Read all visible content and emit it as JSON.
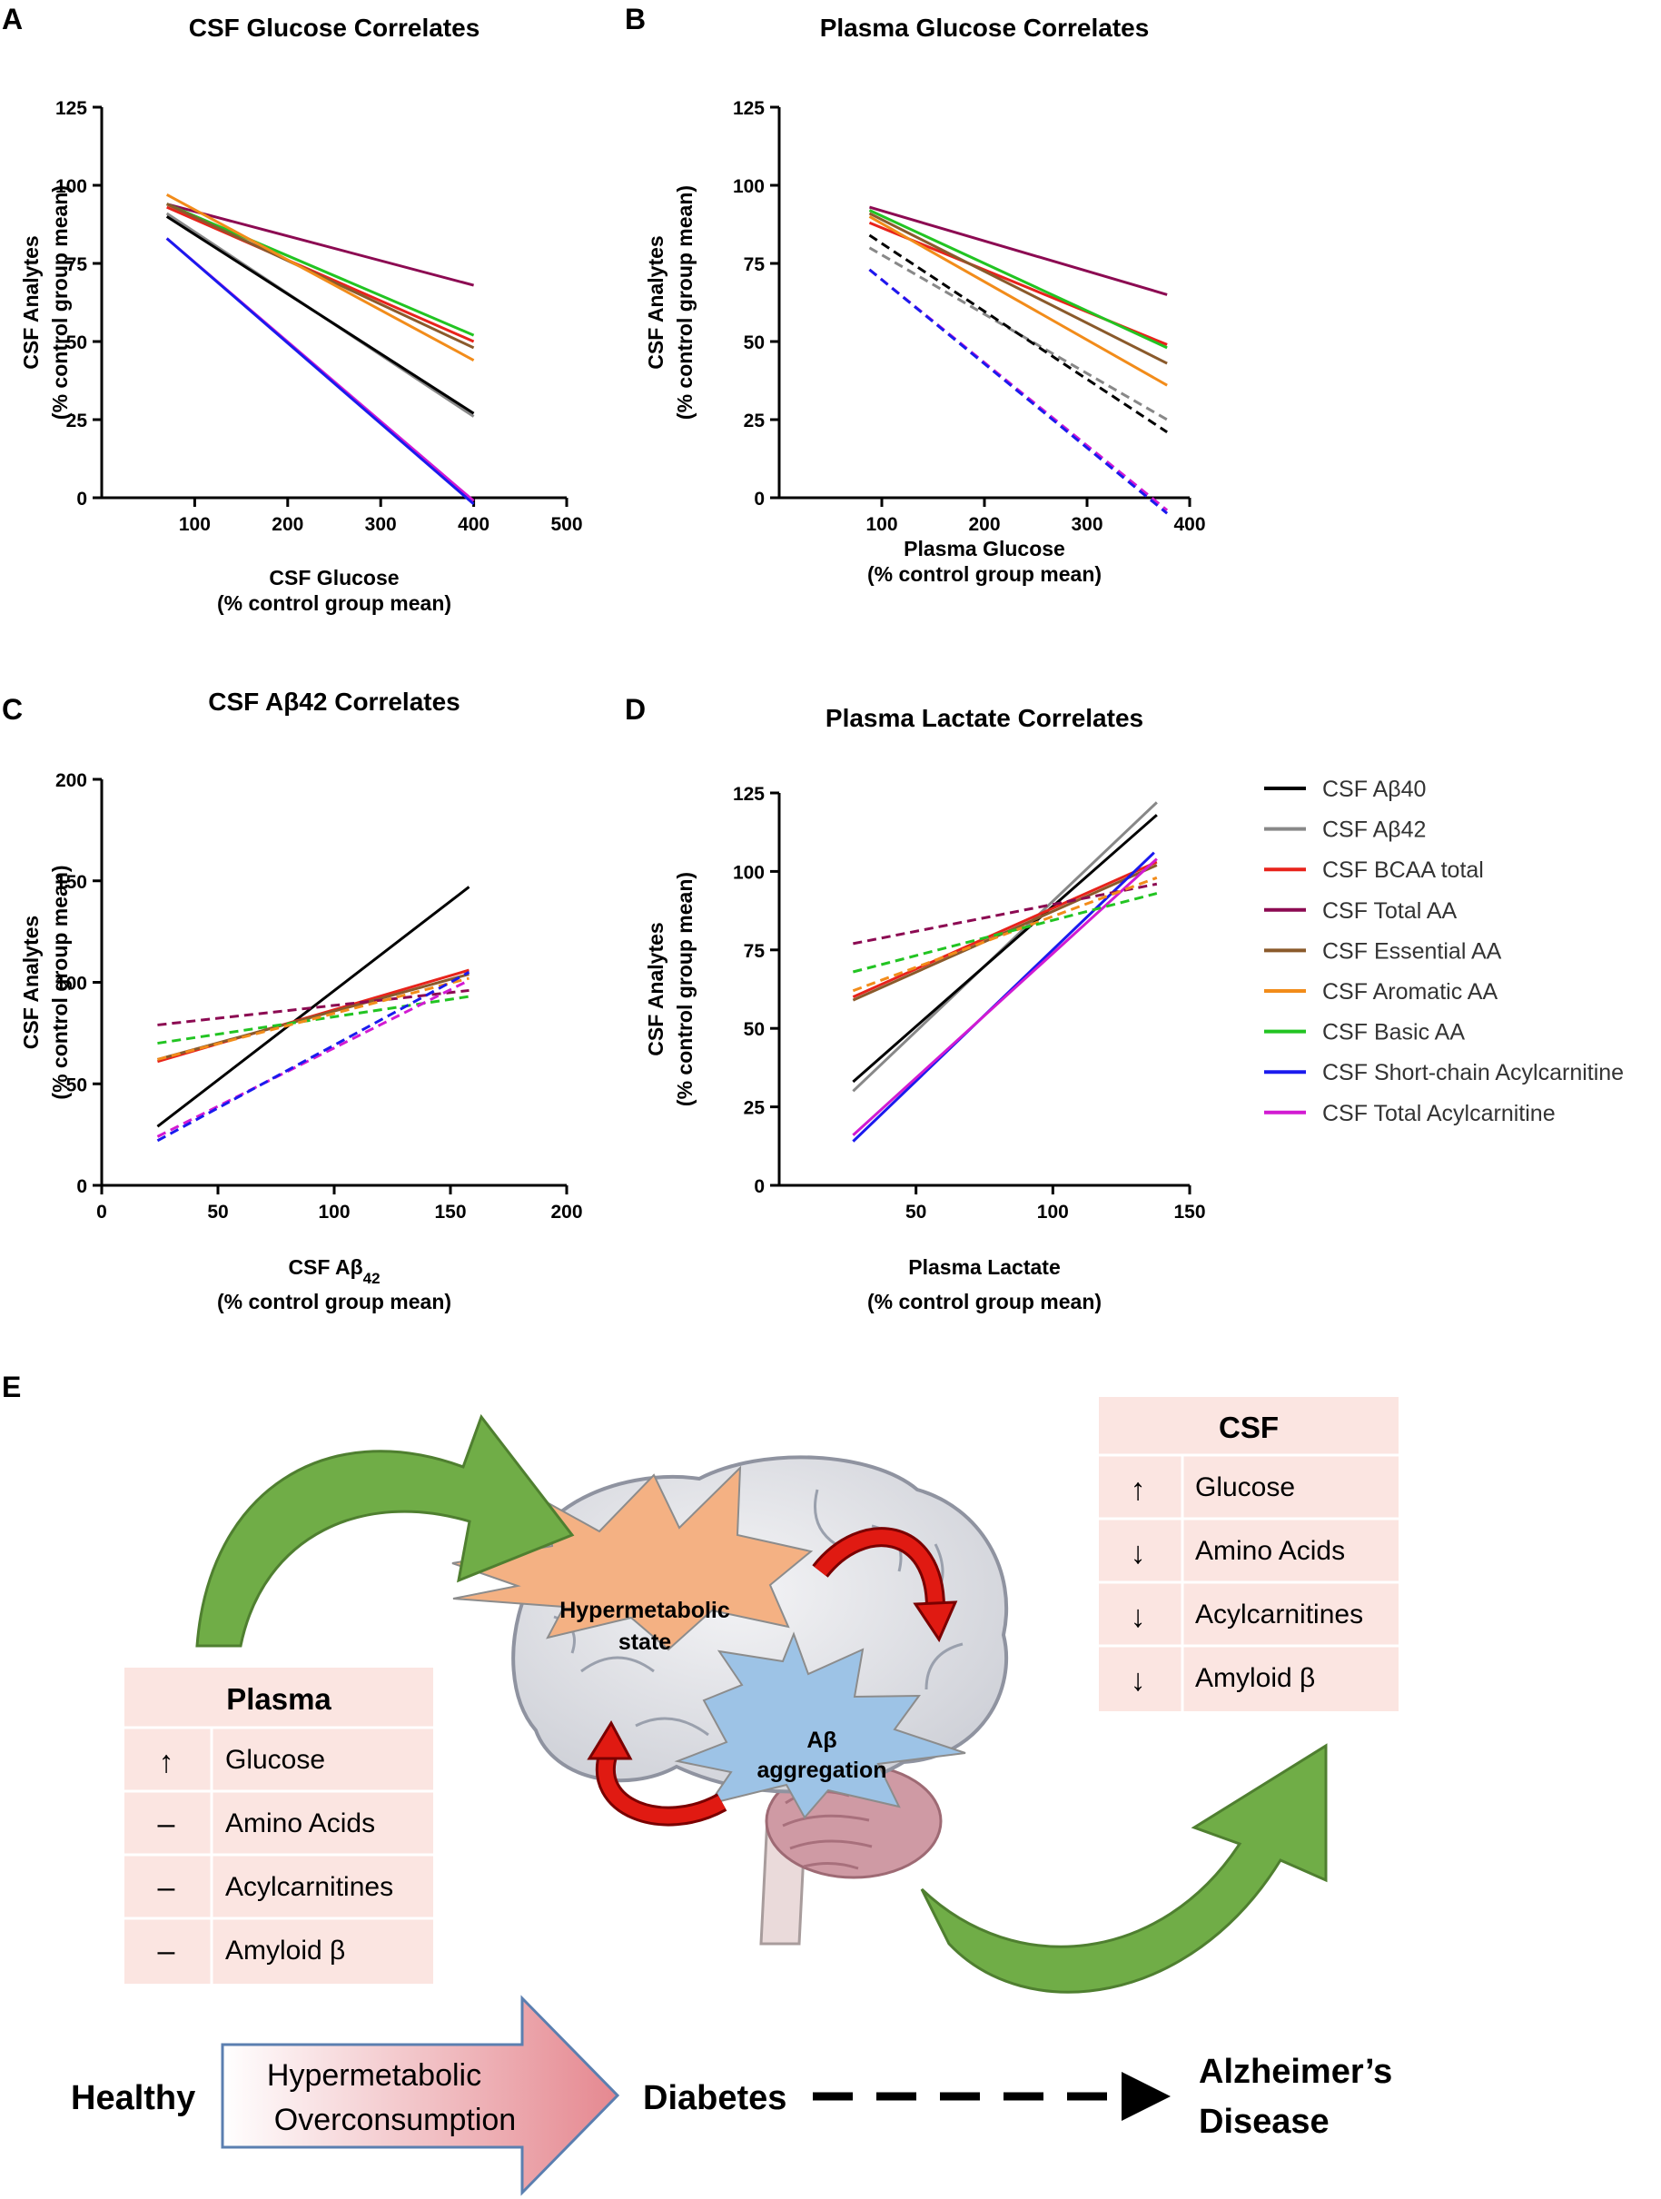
{
  "panel_letters": [
    "A",
    "B",
    "C",
    "D",
    "E"
  ],
  "colors": {
    "ab40": "#000000",
    "ab42": "#888888",
    "bcaa": "#e8231b",
    "total_aa": "#8c0a52",
    "essential_aa": "#8a5a2b",
    "aromatic_aa": "#f28c1a",
    "basic_aa": "#22c422",
    "short_acyl": "#1a1aee",
    "total_acyl": "#d21ad2"
  },
  "legend": [
    {
      "key": "ab40",
      "label": "CSF Aβ40"
    },
    {
      "key": "ab42",
      "label": "CSF Aβ42"
    },
    {
      "key": "bcaa",
      "label": "CSF BCAA total"
    },
    {
      "key": "total_aa",
      "label": "CSF Total AA"
    },
    {
      "key": "essential_aa",
      "label": "CSF Essential AA"
    },
    {
      "key": "aromatic_aa",
      "label": "CSF Aromatic AA"
    },
    {
      "key": "basic_aa",
      "label": "CSF Basic AA"
    },
    {
      "key": "short_acyl",
      "label": "CSF Short-chain Acylcarnitine"
    },
    {
      "key": "total_acyl",
      "label": "CSF Total Acylcarnitine"
    }
  ],
  "chart_data": [
    {
      "id": "A",
      "type": "line",
      "title": "CSF Glucose  Correlates",
      "xlabel": "CSF Glucose",
      "xlabel2": "(% control group mean)",
      "ylabel": "CSF Analytes",
      "ylabel2": "(% control group mean)",
      "xlim": [
        0,
        500
      ],
      "ylim": [
        0,
        125
      ],
      "xticks": [
        100,
        200,
        300,
        400,
        500
      ],
      "yticks": [
        0,
        25,
        50,
        75,
        100,
        125
      ],
      "series": [
        {
          "key": "total_aa",
          "x": [
            70,
            400
          ],
          "y": [
            94,
            68
          ],
          "dashed": false
        },
        {
          "key": "basic_aa",
          "x": [
            70,
            400
          ],
          "y": [
            94,
            52
          ],
          "dashed": false
        },
        {
          "key": "bcaa",
          "x": [
            70,
            400
          ],
          "y": [
            93,
            50
          ],
          "dashed": false
        },
        {
          "key": "essential_aa",
          "x": [
            70,
            400
          ],
          "y": [
            94,
            48
          ],
          "dashed": false
        },
        {
          "key": "aromatic_aa",
          "x": [
            70,
            400
          ],
          "y": [
            97,
            44
          ],
          "dashed": false
        },
        {
          "key": "ab42",
          "x": [
            70,
            400
          ],
          "y": [
            91,
            26
          ],
          "dashed": false
        },
        {
          "key": "ab40",
          "x": [
            70,
            400
          ],
          "y": [
            90,
            27
          ],
          "dashed": false
        },
        {
          "key": "total_acyl",
          "x": [
            70,
            400
          ],
          "y": [
            83,
            -1
          ],
          "dashed": false
        },
        {
          "key": "short_acyl",
          "x": [
            70,
            400
          ],
          "y": [
            83,
            -2
          ],
          "dashed": false
        }
      ]
    },
    {
      "id": "B",
      "type": "line",
      "title": "Plasma Glucose Correlates",
      "xlabel": "Plasma Glucose",
      "xlabel2": "(% control group mean)",
      "ylabel": "CSF Analytes",
      "ylabel2": "(% control group mean)",
      "xlim": [
        0,
        400
      ],
      "ylim": [
        0,
        125
      ],
      "xticks": [
        100,
        200,
        300,
        400
      ],
      "yticks": [
        0,
        25,
        50,
        75,
        100,
        125
      ],
      "series": [
        {
          "key": "total_aa",
          "x": [
            88,
            378
          ],
          "y": [
            93,
            65
          ],
          "dashed": false
        },
        {
          "key": "bcaa",
          "x": [
            88,
            378
          ],
          "y": [
            88,
            49
          ],
          "dashed": false
        },
        {
          "key": "basic_aa",
          "x": [
            88,
            378
          ],
          "y": [
            92,
            48
          ],
          "dashed": false
        },
        {
          "key": "essential_aa",
          "x": [
            88,
            378
          ],
          "y": [
            91,
            43
          ],
          "dashed": false
        },
        {
          "key": "aromatic_aa",
          "x": [
            88,
            378
          ],
          "y": [
            90,
            36
          ],
          "dashed": false
        },
        {
          "key": "ab42",
          "x": [
            88,
            378
          ],
          "y": [
            80,
            25
          ],
          "dashed": true
        },
        {
          "key": "ab40",
          "x": [
            88,
            378
          ],
          "y": [
            84,
            21
          ],
          "dashed": true
        },
        {
          "key": "total_acyl",
          "x": [
            88,
            378
          ],
          "y": [
            73,
            -4
          ],
          "dashed": true
        },
        {
          "key": "short_acyl",
          "x": [
            88,
            378
          ],
          "y": [
            73,
            -5
          ],
          "dashed": true
        }
      ]
    },
    {
      "id": "C",
      "type": "line",
      "title": "CSF Aβ42 Correlates",
      "xlabel": "CSF Aβ",
      "xlabel_sub": "42",
      "xlabel2": "(% control group mean)",
      "ylabel": "CSF  Analytes",
      "ylabel2": "(% control group mean)",
      "xlim": [
        0,
        200
      ],
      "ylim": [
        0,
        200
      ],
      "xticks": [
        0,
        50,
        100,
        150,
        200
      ],
      "yticks": [
        0,
        50,
        100,
        150,
        200
      ],
      "series": [
        {
          "key": "ab40",
          "x": [
            24,
            158
          ],
          "y": [
            29,
            147
          ],
          "dashed": false
        },
        {
          "key": "bcaa",
          "x": [
            24,
            158
          ],
          "y": [
            61,
            106
          ],
          "dashed": false
        },
        {
          "key": "essential_aa",
          "x": [
            24,
            158
          ],
          "y": [
            62,
            104
          ],
          "dashed": false
        },
        {
          "key": "total_aa",
          "x": [
            24,
            158
          ],
          "y": [
            79,
            96
          ],
          "dashed": true
        },
        {
          "key": "basic_aa",
          "x": [
            24,
            158
          ],
          "y": [
            70,
            93
          ],
          "dashed": true
        },
        {
          "key": "aromatic_aa",
          "x": [
            24,
            158
          ],
          "y": [
            62,
            102
          ],
          "dashed": true
        },
        {
          "key": "total_acyl",
          "x": [
            24,
            158
          ],
          "y": [
            24,
            101
          ],
          "dashed": true
        },
        {
          "key": "short_acyl",
          "x": [
            24,
            158
          ],
          "y": [
            22,
            105
          ],
          "dashed": true
        }
      ]
    },
    {
      "id": "D",
      "type": "line",
      "title": "Plasma Lactate Correlates",
      "xlabel": "Plasma Lactate",
      "xlabel2": "(% control group mean)",
      "ylabel": "CSF  Analytes",
      "ylabel2": "(% control group mean)",
      "xlim": [
        0,
        150
      ],
      "ylim": [
        0,
        125
      ],
      "xticks": [
        50,
        100,
        150
      ],
      "yticks": [
        0,
        25,
        50,
        75,
        100,
        125
      ],
      "series": [
        {
          "key": "ab42",
          "x": [
            27,
            138
          ],
          "y": [
            30,
            122
          ],
          "dashed": false
        },
        {
          "key": "ab40",
          "x": [
            27,
            138
          ],
          "y": [
            33,
            118
          ],
          "dashed": false
        },
        {
          "key": "bcaa",
          "x": [
            27,
            138
          ],
          "y": [
            60,
            103
          ],
          "dashed": false
        },
        {
          "key": "essential_aa",
          "x": [
            27,
            138
          ],
          "y": [
            59,
            102
          ],
          "dashed": false
        },
        {
          "key": "short_acyl",
          "x": [
            27,
            137
          ],
          "y": [
            14,
            106
          ],
          "dashed": false
        },
        {
          "key": "total_acyl",
          "x": [
            27,
            138
          ],
          "y": [
            16,
            104
          ],
          "dashed": false
        },
        {
          "key": "total_aa",
          "x": [
            27,
            138
          ],
          "y": [
            77,
            96
          ],
          "dashed": true
        },
        {
          "key": "aromatic_aa",
          "x": [
            27,
            138
          ],
          "y": [
            62,
            98
          ],
          "dashed": true
        },
        {
          "key": "basic_aa",
          "x": [
            27,
            138
          ],
          "y": [
            68,
            93
          ],
          "dashed": true
        }
      ]
    }
  ],
  "diagram": {
    "csf_table": {
      "title": "CSF",
      "rows": [
        {
          "symbol": "↑",
          "label": "Glucose"
        },
        {
          "symbol": "↓",
          "label": "Amino Acids"
        },
        {
          "symbol": "↓",
          "label": "Acylcarnitines"
        },
        {
          "symbol": "↓",
          "label": "Amyloid β"
        }
      ]
    },
    "plasma_table": {
      "title": "Plasma",
      "rows": [
        {
          "symbol": "↑",
          "label": "Glucose"
        },
        {
          "symbol": "–",
          "label": "Amino Acids"
        },
        {
          "symbol": "–",
          "label": "Acylcarnitines"
        },
        {
          "symbol": "–",
          "label": "Amyloid β"
        }
      ]
    },
    "hypermetabolic_line1": "Hypermetabolic",
    "hypermetabolic_line2": "state",
    "ab_line1": "Aβ",
    "ab_line2": "aggregation",
    "stage_healthy": "Healthy",
    "arrow_line1": "Hypermetabolic",
    "arrow_line2": "Overconsumption",
    "stage_diabetes": "Diabetes",
    "stage_ad_line1": "Alzheimer’s",
    "stage_ad_line2": "Disease"
  }
}
